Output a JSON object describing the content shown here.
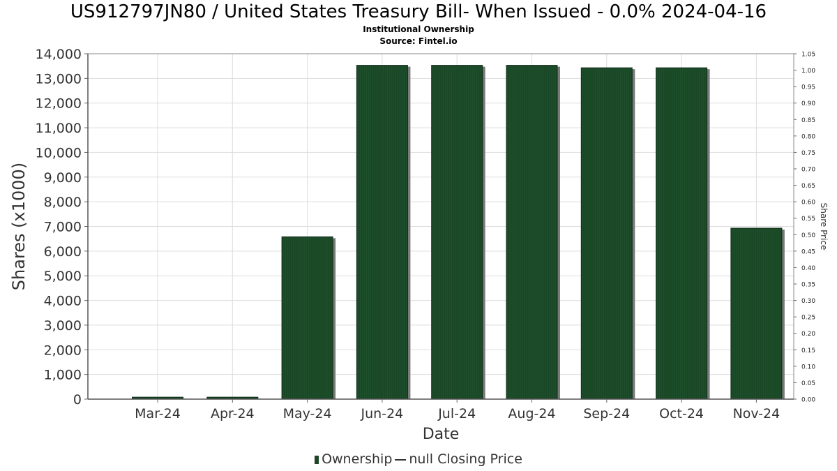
{
  "chart_data": {
    "type": "bar",
    "title": "US912797JN80 / United States Treasury Bill- When Issued - 0.0% 2024-04-16",
    "subtitle_1": "Institutional Ownership",
    "subtitle_2": "Source: Fintel.io",
    "xlabel": "Date",
    "ylabel": "Shares (x1000)",
    "y2label": "Share Price",
    "categories": [
      "Mar-24",
      "Apr-24",
      "May-24",
      "Jun-24",
      "Jul-24",
      "Aug-24",
      "Sep-24",
      "Oct-24",
      "Nov-24"
    ],
    "series": [
      {
        "name": "Ownership",
        "values": [
          80,
          80,
          6580,
          13530,
          13530,
          13530,
          13430,
          13430,
          6930
        ]
      }
    ],
    "ylim": [
      0,
      14000
    ],
    "yticks": [
      "0",
      "1,000",
      "2,000",
      "3,000",
      "4,000",
      "5,000",
      "6,000",
      "7,000",
      "8,000",
      "9,000",
      "10,000",
      "11,000",
      "12,000",
      "13,000",
      "14,000"
    ],
    "y2lim": [
      0,
      1.05
    ],
    "y2ticks": [
      "0.00",
      "0.05",
      "0.10",
      "0.15",
      "0.20",
      "0.25",
      "0.30",
      "0.35",
      "0.40",
      "0.45",
      "0.50",
      "0.55",
      "0.60",
      "0.65",
      "0.70",
      "0.75",
      "0.80",
      "0.85",
      "0.90",
      "0.95",
      "1.00",
      "1.05"
    ],
    "grid": true,
    "legend": {
      "placement": "bottom",
      "bar_label": "Ownership",
      "line_label": "null Closing Price"
    },
    "colors": {
      "bar": "#1a4726",
      "bar_shadow": "#7a7a7a",
      "grid": "#dddddd",
      "frame": "#888888"
    }
  }
}
